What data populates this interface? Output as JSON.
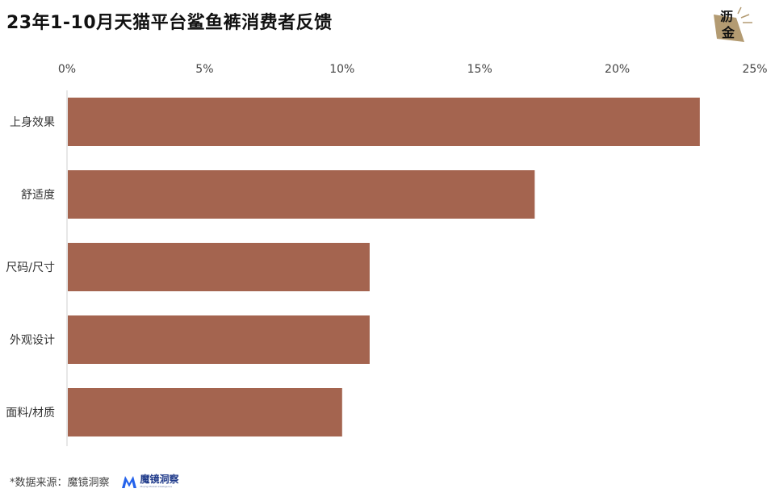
{
  "title": "23年1-10月天猫平台鲨鱼裤消费者反馈",
  "logo": {
    "line1": "沥",
    "line2": "金"
  },
  "colors": {
    "bar": "#a4644f",
    "axis": "#cfcfcf",
    "logo": "#b39b72"
  },
  "chart_data": {
    "type": "bar",
    "orientation": "horizontal",
    "categories": [
      "上身效果",
      "舒适度",
      "尺码/尺寸",
      "外观设计",
      "面料/材质"
    ],
    "values": [
      23,
      17,
      11,
      11,
      10
    ],
    "xticks": [
      "0%",
      "5%",
      "10%",
      "15%",
      "20%",
      "25%"
    ],
    "xlim": [
      0,
      25
    ],
    "grid": false
  },
  "footer": {
    "source": "*数据来源：魔镜洞察",
    "brand_name": "魔镜洞察",
    "brand_sub": "Mojing Market Intelligence"
  }
}
